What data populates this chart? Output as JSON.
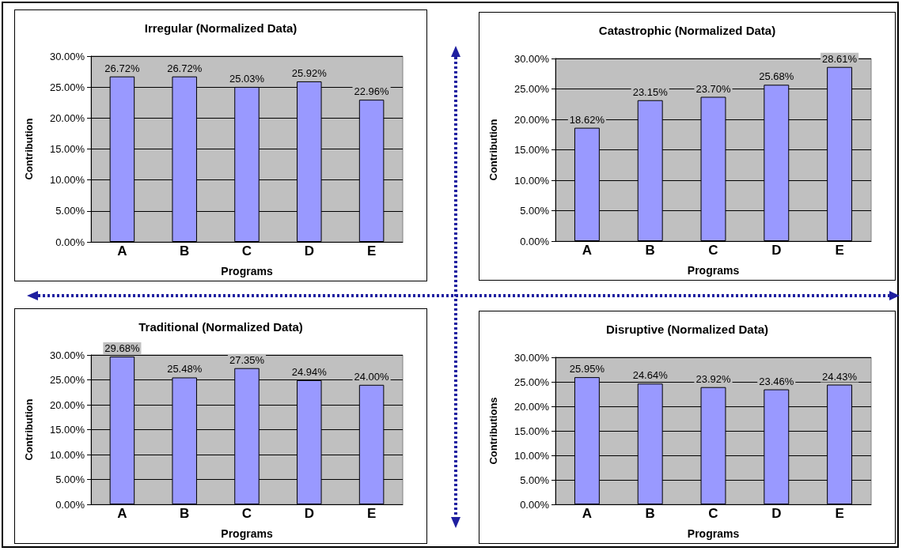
{
  "chart_data": [
    {
      "type": "bar",
      "title": "Irregular (Normalized Data)",
      "xlabel": "Programs",
      "ylabel": "Contribution",
      "categories": [
        "A",
        "B",
        "C",
        "D",
        "E"
      ],
      "values": [
        26.72,
        26.72,
        25.03,
        25.92,
        22.96
      ],
      "value_labels": [
        "26.72%",
        "26.72%",
        "25.03%",
        "25.92%",
        "22.96%"
      ],
      "color": "#9999ff",
      "ylim": [
        0,
        30
      ],
      "yticks": [
        {
          "value": 0,
          "label": "0.00%"
        },
        {
          "value": 5,
          "label": "5.00%"
        },
        {
          "value": 10,
          "label": "10.00%"
        },
        {
          "value": 15,
          "label": "15.00%"
        },
        {
          "value": 20,
          "label": "20.00%"
        },
        {
          "value": 25,
          "label": "25.00%"
        },
        {
          "value": 30,
          "label": "30.00%"
        }
      ],
      "grid": "y"
    },
    {
      "type": "bar",
      "title": "Catastrophic (Normalized Data)",
      "xlabel": "Programs",
      "ylabel": "Contribution",
      "categories": [
        "A",
        "B",
        "C",
        "D",
        "E"
      ],
      "values": [
        18.62,
        23.15,
        23.7,
        25.68,
        28.61
      ],
      "value_labels": [
        "18.62%",
        "23.15%",
        "23.70%",
        "25.68%",
        "28.61%"
      ],
      "color": "#9999ff",
      "ylim": [
        0,
        30
      ],
      "yticks": [
        {
          "value": 0,
          "label": "0.00%"
        },
        {
          "value": 5,
          "label": "5.00%"
        },
        {
          "value": 10,
          "label": "10.00%"
        },
        {
          "value": 15,
          "label": "15.00%"
        },
        {
          "value": 20,
          "label": "20.00%"
        },
        {
          "value": 25,
          "label": "25.00%"
        },
        {
          "value": 30,
          "label": "30.00%"
        }
      ],
      "grid": "y"
    },
    {
      "type": "bar",
      "title": "Traditional (Normalized Data)",
      "xlabel": "Programs",
      "ylabel": "Contribution",
      "categories": [
        "A",
        "B",
        "C",
        "D",
        "E"
      ],
      "values": [
        29.68,
        25.48,
        27.35,
        24.94,
        24.0
      ],
      "value_labels": [
        "29.68%",
        "25.48%",
        "27.35%",
        "24.94%",
        "24.00%"
      ],
      "color": "#9999ff",
      "ylim": [
        0,
        30
      ],
      "yticks": [
        {
          "value": 0,
          "label": "0.00%"
        },
        {
          "value": 5,
          "label": "5.00%"
        },
        {
          "value": 10,
          "label": "10.00%"
        },
        {
          "value": 15,
          "label": "15.00%"
        },
        {
          "value": 20,
          "label": "20.00%"
        },
        {
          "value": 25,
          "label": "25.00%"
        },
        {
          "value": 30,
          "label": "30.00%"
        }
      ],
      "grid": "y"
    },
    {
      "type": "bar",
      "title": "Disruptive (Normalized Data)",
      "xlabel": "Programs",
      "ylabel": "Contributions",
      "categories": [
        "A",
        "B",
        "C",
        "D",
        "E"
      ],
      "values": [
        25.95,
        24.64,
        23.92,
        23.46,
        24.43
      ],
      "value_labels": [
        "25.95%",
        "24.64%",
        "23.92%",
        "23.46%",
        "24.43%"
      ],
      "color": "#9999ff",
      "ylim": [
        0,
        30
      ],
      "yticks": [
        {
          "value": 0,
          "label": "0.00%"
        },
        {
          "value": 5,
          "label": "5.00%"
        },
        {
          "value": 10,
          "label": "10.00%"
        },
        {
          "value": 15,
          "label": "15.00%"
        },
        {
          "value": 20,
          "label": "20.00%"
        },
        {
          "value": 25,
          "label": "25.00%"
        },
        {
          "value": 30,
          "label": "30.00%"
        }
      ],
      "grid": "y"
    }
  ]
}
